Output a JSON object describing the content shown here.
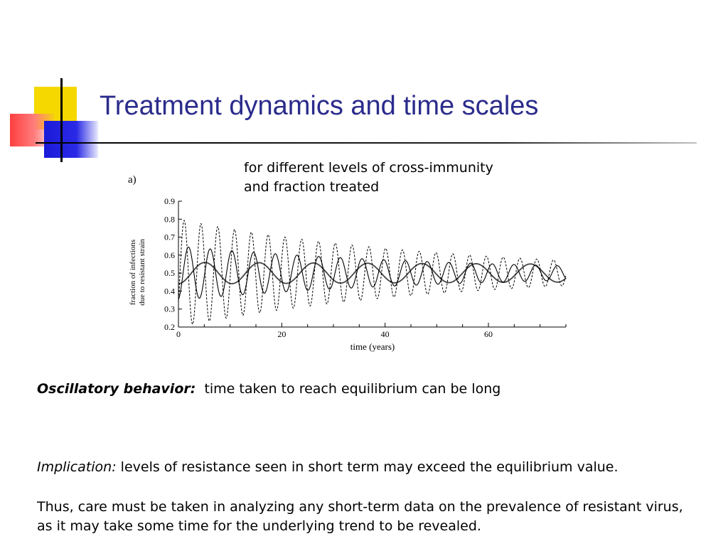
{
  "slide": {
    "title": "Treatment dynamics and time scales",
    "subtitle_lines": [
      "for different levels of cross-immunity",
      "and fraction treated"
    ]
  },
  "chart_data": {
    "type": "line",
    "panel_label": "a)",
    "xlabel": "time (years)",
    "ylabel_lines": [
      "fraction of infections",
      "due to resistant strain"
    ],
    "xlim": [
      0,
      75
    ],
    "ylim": [
      0.2,
      0.9
    ],
    "x_ticks": [
      0,
      20,
      40,
      60
    ],
    "y_ticks": [
      0.2,
      0.3,
      0.4,
      0.5,
      0.6,
      0.7,
      0.8,
      0.9
    ],
    "equilibrium": 0.5,
    "series": [
      {
        "style": "solid-thick",
        "amplitude_start": 0.06,
        "amplitude_end": 0.05,
        "period_years": 10.5,
        "phase_years": 2.5
      },
      {
        "style": "solid-thin",
        "amplitude_start": 0.15,
        "amplitude_end": 0.04,
        "period_years": 4.2,
        "phase_years": 0.9
      },
      {
        "style": "dashed",
        "amplitude_start": 0.3,
        "amplitude_end": 0.07,
        "period_years": 3.25,
        "phase_years": 0.3
      }
    ],
    "grid": false,
    "legend": "none"
  },
  "notes": {
    "oscillatory": {
      "lead": "Oscillatory behavior:",
      "text": "time taken to reach equilibrium can be long"
    },
    "implication": {
      "lead": "Implication:",
      "text": "levels of resistance seen in short term may exceed the equilibrium value."
    },
    "thus_lines": [
      "Thus, care must be taken in analyzing any short-term data on the prevalence of resistant virus,",
      "as it may take some time for the underlying trend to be revealed."
    ]
  }
}
